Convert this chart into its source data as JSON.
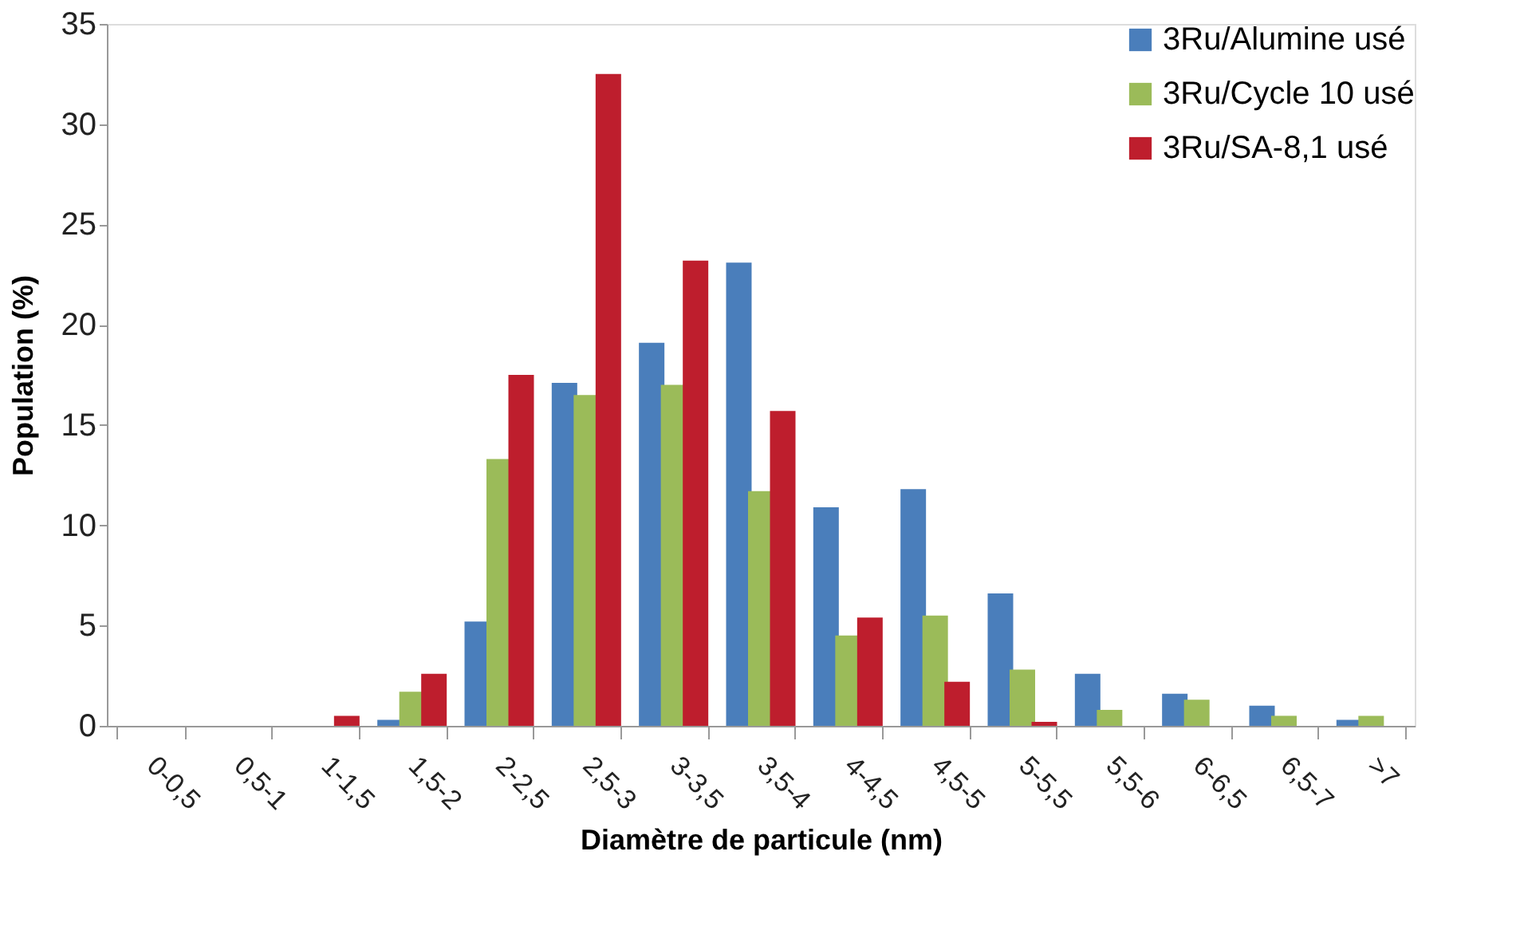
{
  "chart_data": {
    "type": "bar",
    "xlabel": "Diamètre de particule (nm)",
    "ylabel": "Population (%)",
    "categories": [
      "0-0,5",
      "0,5-1",
      "1-1,5",
      "1,5-2",
      "2-2,5",
      "2,5-3",
      "3-3,5",
      "3,5-4",
      "4-4,5",
      "4,5-5",
      "5-5,5",
      "5,5-6",
      "6-6,5",
      "6,5-7",
      ">7"
    ],
    "series": [
      {
        "name": "3Ru/Alumine usé",
        "color": "#4a7ebb",
        "values": [
          0,
          0,
          0,
          0.3,
          5.2,
          17.1,
          19.1,
          23.1,
          10.9,
          11.8,
          6.6,
          2.6,
          1.6,
          1.0,
          0.3
        ]
      },
      {
        "name": "3Ru/Cycle 10 usé",
        "color": "#9bbb59",
        "values": [
          0,
          0,
          0,
          1.7,
          13.3,
          16.5,
          17.0,
          11.7,
          4.5,
          5.5,
          2.8,
          0.8,
          1.3,
          0.5,
          0.5
        ]
      },
      {
        "name": "3Ru/SA-8,1 usé",
        "color": "#be1e2d",
        "values": [
          0,
          0,
          0.5,
          2.6,
          17.5,
          32.5,
          23.2,
          15.7,
          5.4,
          2.2,
          0.2,
          0,
          0,
          0,
          0
        ]
      }
    ],
    "ylim": [
      0,
      35
    ],
    "yticks": [
      0,
      5,
      10,
      15,
      20,
      25,
      30,
      35
    ],
    "grid": false,
    "legend": "top right"
  }
}
